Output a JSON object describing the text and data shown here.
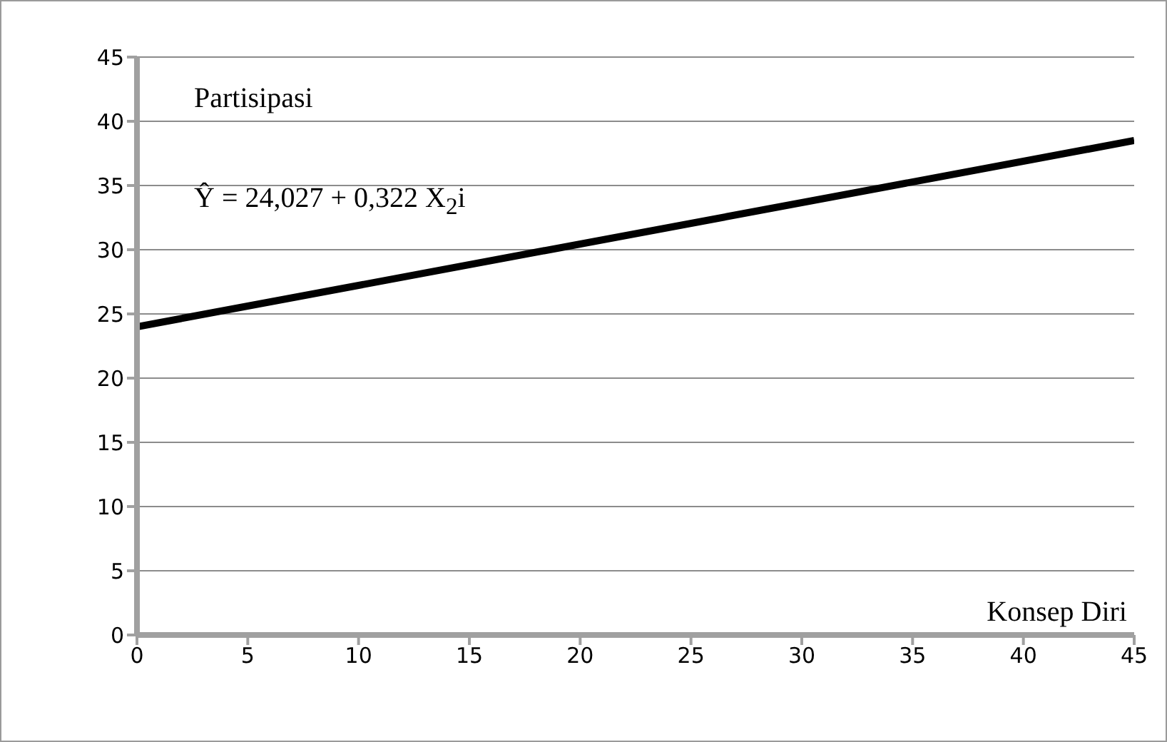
{
  "chart_data": {
    "type": "line",
    "xlabel": "Konsep Diri",
    "ylabel": "Partisipasi",
    "annotations": [
      "Ŷ = 24,027 + 0,322 X$_{2}$i"
    ],
    "x": [
      0,
      45
    ],
    "series": [
      {
        "color": "#000000",
        "values": [
          24,
          38.5
        ]
      }
    ],
    "xlim": [
      0,
      45
    ],
    "xticks": [
      0,
      5,
      10,
      15,
      20,
      25,
      30,
      35,
      40,
      45
    ],
    "ylim": [
      0,
      45
    ],
    "yticks": [
      0,
      5,
      10,
      15,
      20,
      25,
      30,
      35,
      40,
      45
    ],
    "grid": "y",
    "legend": false,
    "marker": "none",
    "line_style": "solid"
  }
}
